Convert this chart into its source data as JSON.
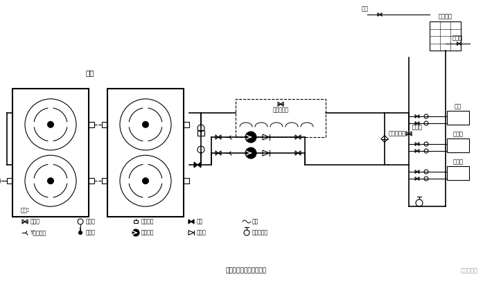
{
  "title": "机组水路系统安装示意图",
  "bg_color": "#ffffff",
  "line_color": "#000000",
  "text_color": "#000000",
  "main_title": "三机",
  "label_legend": "图例:",
  "legend_line1": "截止阀  压力表  水流开关  闸阀  软接",
  "legend_line2": "Y形过滤器  温度计  循环水泵  止回阀  自动排气阀",
  "top_right_label1": "膨胀水箱",
  "top_right_label2": "补水",
  "top_right_label3": "排污阀",
  "middle_right_label1": "压差旁通阀",
  "middle_right_label2": "泄水阀",
  "far_right_label1": "末端",
  "far_right_label2": "二通阀",
  "far_right_label3": "三通阀",
  "brand": "郭鹏学暖通"
}
